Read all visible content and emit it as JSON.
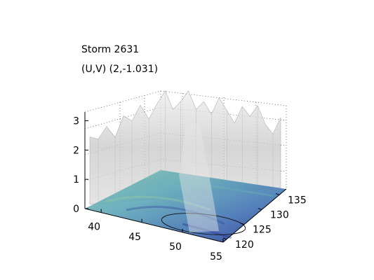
{
  "chart_data": {
    "type": "surface",
    "annotations": {
      "title": "Storm 2631",
      "uv_label": "(U,V) (2,-1.031)"
    },
    "x_axis": {
      "ticks": [
        "40",
        "45",
        "50",
        "55"
      ],
      "range": [
        38,
        55
      ]
    },
    "y_axis": {
      "ticks": [
        "120",
        "125",
        "130",
        "135"
      ],
      "range": [
        119,
        137
      ]
    },
    "z_axis": {
      "ticks": [
        "0",
        "1",
        "2",
        "3"
      ],
      "range": [
        0,
        3.3
      ]
    },
    "grid": true,
    "surface_color": "#c8c8c8",
    "floor_colormap": [
      "#2a2d8f",
      "#3f6fb2",
      "#5fa8b8",
      "#86c4a7"
    ],
    "ridge_profile": [
      2.3,
      2.1,
      2.4,
      1.9,
      2.5,
      2.2,
      2.6,
      2.0,
      2.4,
      2.8,
      2.2,
      2.5,
      2.9,
      2.3,
      2.6,
      2.2,
      2.8,
      2.4,
      2.0,
      2.6,
      2.3,
      2.7,
      2.1,
      1.8,
      2.4
    ]
  }
}
